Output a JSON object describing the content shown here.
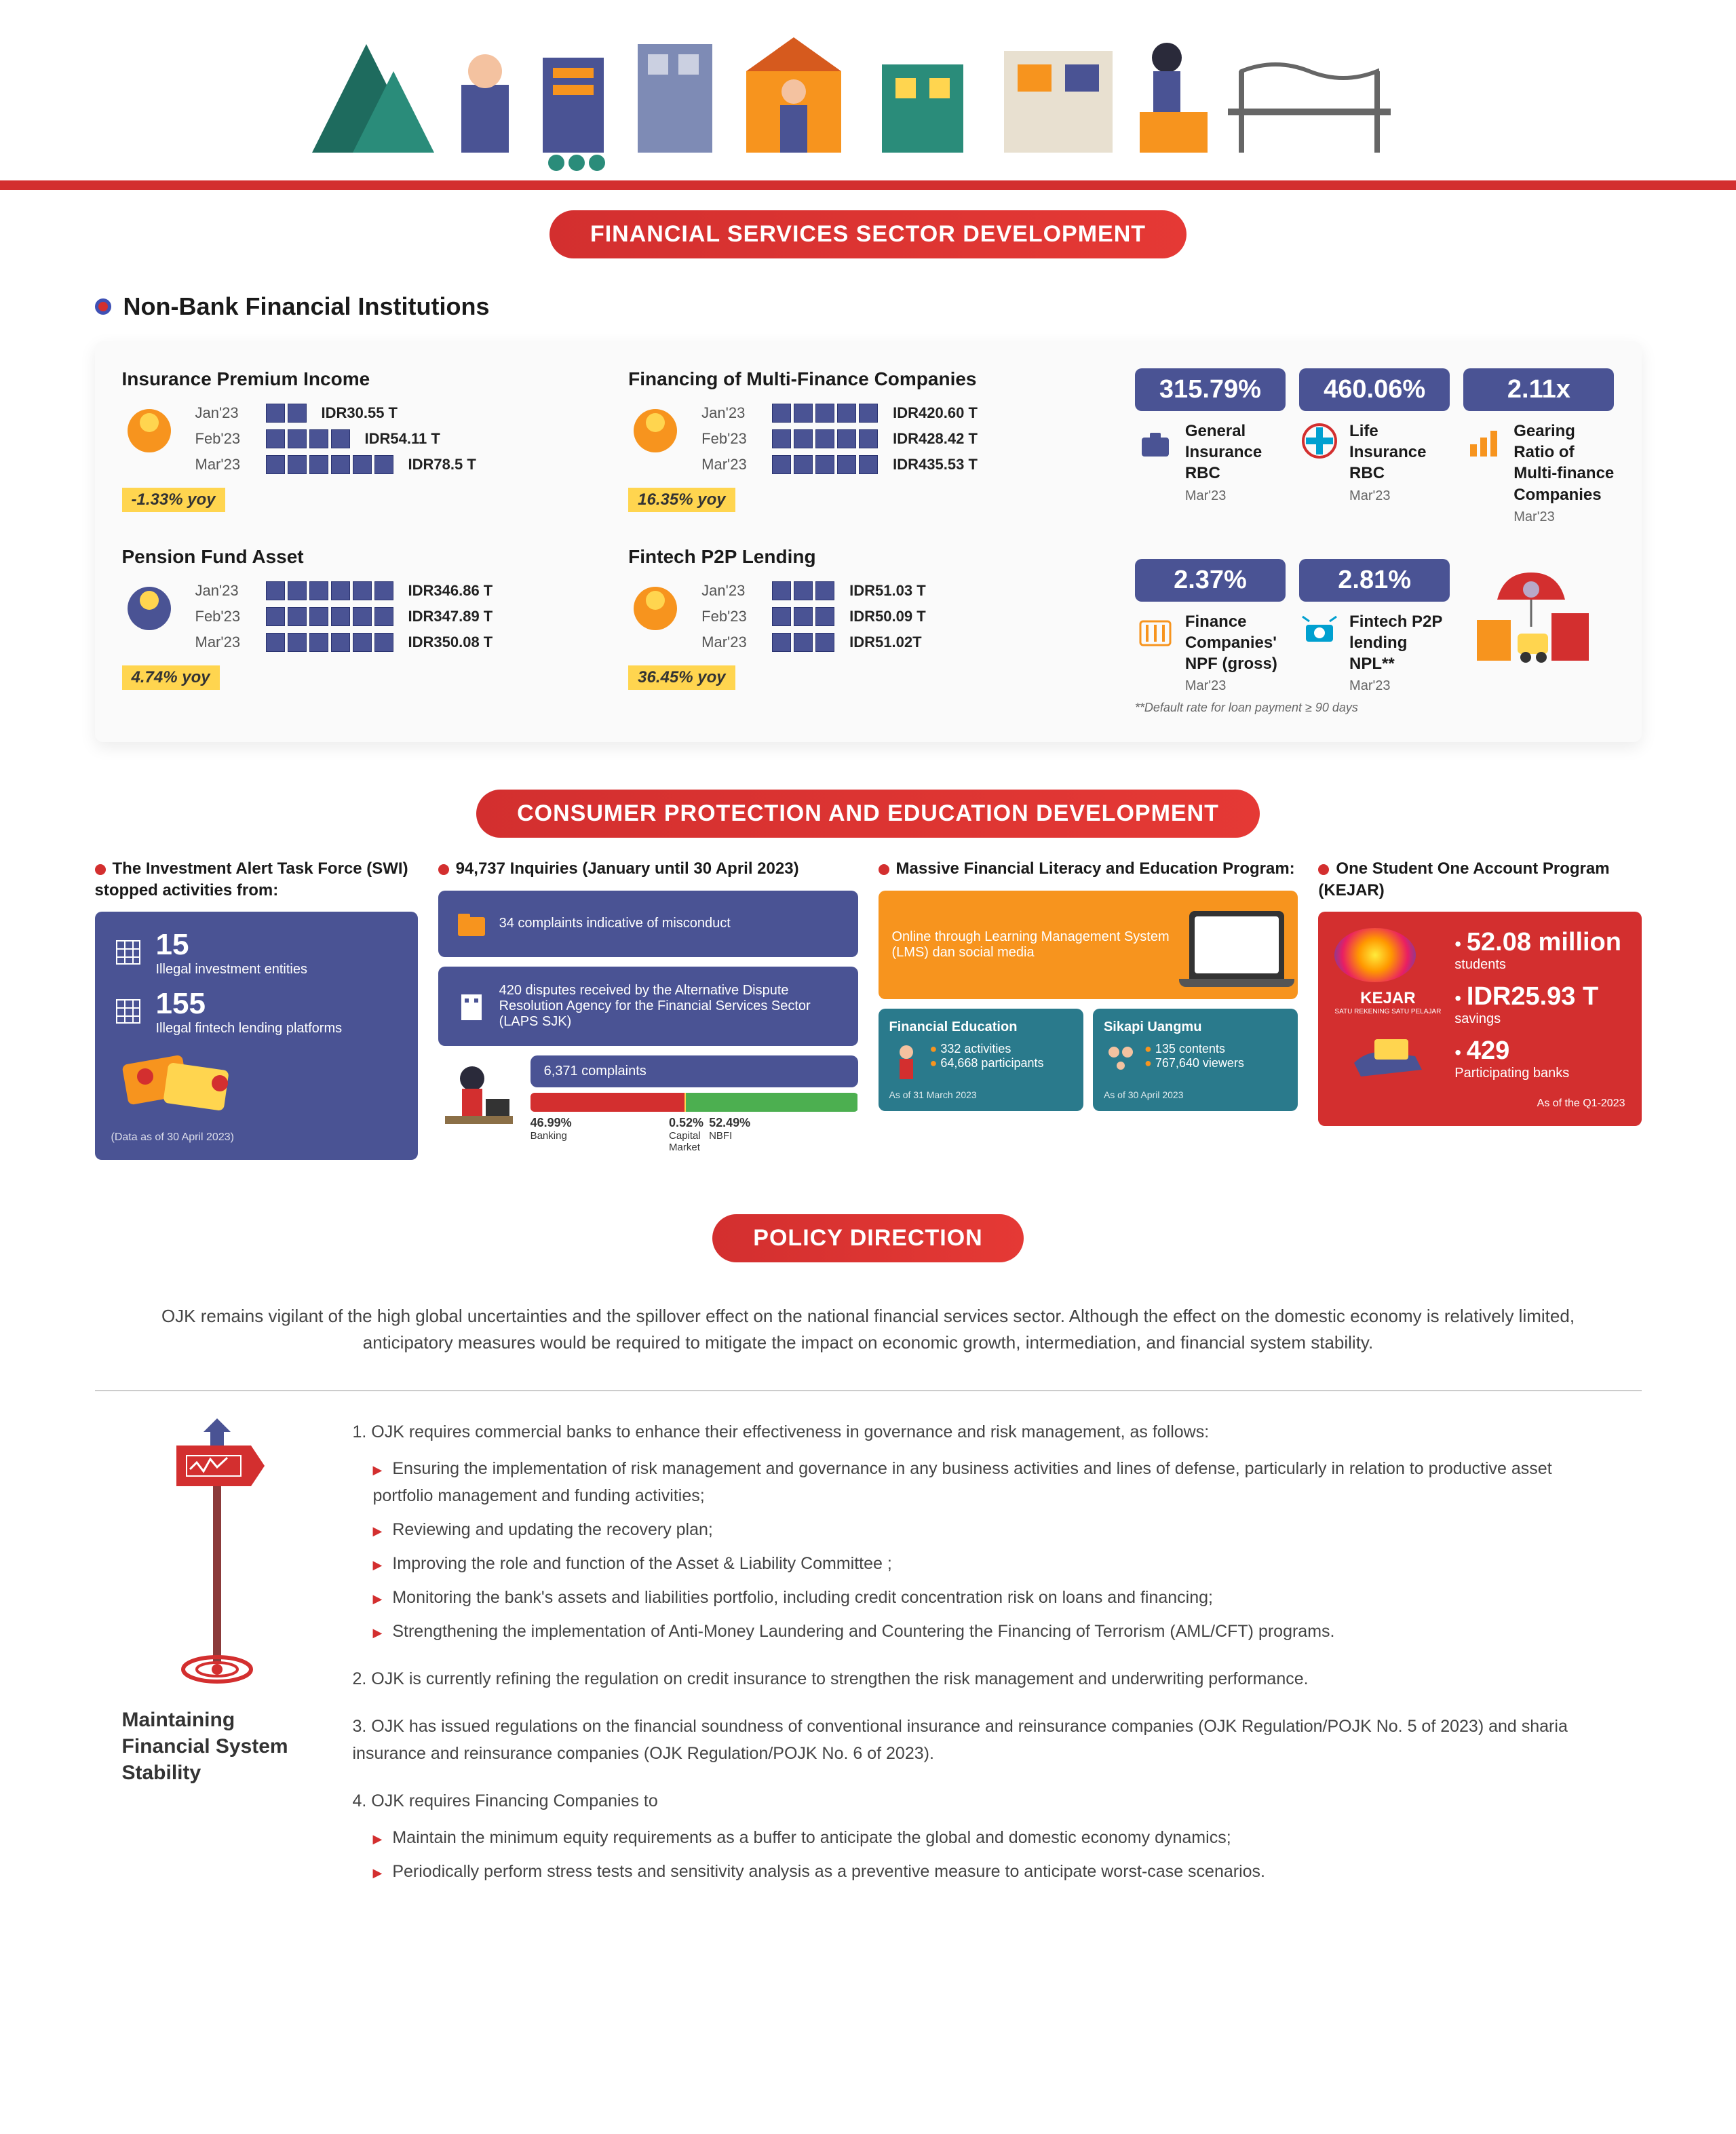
{
  "banners": {
    "financial": "FINANCIAL SERVICES SECTOR DEVELOPMENT",
    "consumer": "CONSUMER PROTECTION AND EDUCATION DEVELOPMENT",
    "policy": "POLICY DIRECTION"
  },
  "nbfi": {
    "title": "Non-Bank Financial Institutions",
    "charts": {
      "insurance": {
        "title": "Insurance Premium Income",
        "rows": [
          {
            "label": "Jan'23",
            "segs": 2,
            "value": "IDR30.55 T"
          },
          {
            "label": "Feb'23",
            "segs": 4,
            "value": "IDR54.11 T"
          },
          {
            "label": "Mar'23",
            "segs": 6,
            "value": "IDR78.5 T"
          }
        ],
        "yoy": "-1.33% yoy",
        "icon_color": "#f7941e"
      },
      "multifinance": {
        "title": "Financing of Multi-Finance Companies",
        "rows": [
          {
            "label": "Jan'23",
            "segs": 5,
            "value": "IDR420.60 T"
          },
          {
            "label": "Feb'23",
            "segs": 5,
            "value": "IDR428.42 T"
          },
          {
            "label": "Mar'23",
            "segs": 5,
            "value": "IDR435.53 T"
          }
        ],
        "yoy": "16.35% yoy",
        "icon_color": "#f7941e"
      },
      "pension": {
        "title": "Pension Fund Asset",
        "rows": [
          {
            "label": "Jan'23",
            "segs": 6,
            "value": "IDR346.86 T"
          },
          {
            "label": "Feb'23",
            "segs": 6,
            "value": "IDR347.89 T"
          },
          {
            "label": "Mar'23",
            "segs": 6,
            "value": "IDR350.08 T"
          }
        ],
        "yoy": "4.74% yoy",
        "icon_color": "#4a5394"
      },
      "fintech": {
        "title": "Fintech P2P Lending",
        "rows": [
          {
            "label": "Jan'23",
            "segs": 3,
            "value": "IDR51.03 T"
          },
          {
            "label": "Feb'23",
            "segs": 3,
            "value": "IDR50.09 T"
          },
          {
            "label": "Mar'23",
            "segs": 3,
            "value": "IDR51.02T"
          }
        ],
        "yoy": "36.45% yoy",
        "icon_color": "#f7941e"
      }
    },
    "stats": [
      {
        "value": "315.79%",
        "text": "General Insurance RBC",
        "sub": "Mar'23",
        "icon": "briefcase",
        "icon_color": "#4a5394"
      },
      {
        "value": "460.06%",
        "text": "Life Insurance RBC",
        "sub": "Mar'23",
        "icon": "plus",
        "icon_color": "#00a0d0"
      },
      {
        "value": "2.11x",
        "text": "Gearing Ratio of Multi-finance Companies",
        "sub": "Mar'23",
        "icon": "chart",
        "icon_color": "#f7941e"
      },
      {
        "value": "2.37%",
        "text": "Finance Companies' NPF (gross)",
        "sub": "Mar'23",
        "icon": "bars",
        "icon_color": "#f7941e"
      },
      {
        "value": "2.81%",
        "text": "Fintech P2P lending NPL**",
        "sub": "Mar'23",
        "icon": "money",
        "icon_color": "#00a0d0"
      }
    ],
    "footnote": "**Default rate for loan payment ≥ 90 days"
  },
  "consumer": {
    "col1": {
      "title": "The Investment Alert Task Force (SWI) stopped activities from:",
      "items": [
        {
          "n": "15",
          "t": "Illegal investment entities"
        },
        {
          "n": "155",
          "t": "Illegal fintech lending platforms"
        }
      ],
      "note": "(Data as of 30 April 2023)"
    },
    "col2": {
      "title": "94,737 Inquiries (January until 30 April 2023)",
      "box1": "34 complaints indicative of misconduct",
      "box2": "420 disputes received by the Alternative Dispute Resolution Agency for the Financial Services Sector (LAPS SJK)",
      "complaints_total": "6,371 complaints",
      "breakdown": [
        {
          "pct": "46.99%",
          "label": "Banking",
          "color": "#d32f2f",
          "w": 46.99
        },
        {
          "pct": "0.52%",
          "label": "Capital Market",
          "color": "#ffd54f",
          "w": 0.52
        },
        {
          "pct": "52.49%",
          "label": "NBFI",
          "color": "#4caf50",
          "w": 52.49
        }
      ]
    },
    "col3": {
      "title": "Massive Financial Literacy and Education Program:",
      "orange": "Online through Learning Management System (LMS) dan social media",
      "boxA": {
        "h": "Financial Education",
        "i1": "332 activities",
        "i2": "64,668 participants",
        "sub": "As of 31 March 2023"
      },
      "boxB": {
        "h": "Sikapi Uangmu",
        "i1": "135 contents",
        "i2": "767,640 viewers",
        "sub": "As of 30 April 2023"
      }
    },
    "col4": {
      "title": "One Student One Account Program (KEJAR)",
      "logo_text": "KEJAR",
      "logo_sub": "SATU REKENING SATU PELAJAR",
      "items": [
        {
          "big": "52.08 million",
          "t": "students"
        },
        {
          "big": "IDR25.93 T",
          "t": "savings"
        },
        {
          "big": "429",
          "t": "Participating banks"
        }
      ],
      "note": "As of the Q1-2023"
    }
  },
  "policy": {
    "intro": "OJK remains vigilant of the high global uncertainties and the spillover effect on the national financial services sector. Although the effect on the domestic economy is relatively limited, anticipatory measures would be required to mitigate the impact on economic growth, intermediation, and financial system stability.",
    "left_title": "Maintaining Financial System Stability",
    "items": [
      {
        "n": "1.",
        "text": "OJK requires commercial banks to enhance their effectiveness in governance and risk management, as follows:",
        "sub": [
          "Ensuring the implementation of risk management and governance in any business activities and lines of defense, particularly in relation to productive asset portfolio management and funding activities;",
          "Reviewing and updating the recovery plan;",
          "Improving the role and function of the Asset & Liability Committee ;",
          "Monitoring the bank's assets and liabilities portfolio, including credit concentration risk on loans and financing;",
          "Strengthening the implementation of Anti-Money Laundering and Countering the Financing of Terrorism (AML/CFT) programs."
        ]
      },
      {
        "n": "2.",
        "text": "OJK is currently refining the regulation on credit insurance to strengthen the risk management and underwriting performance."
      },
      {
        "n": "3.",
        "text": "OJK has issued regulations on the financial soundness of conventional insurance and reinsurance companies (OJK Regulation/POJK No. 5 of 2023) and sharia insurance and reinsurance companies (OJK Regulation/POJK No. 6 of 2023)."
      },
      {
        "n": "4.",
        "text": "OJK requires Financing Companies to",
        "sub": [
          "Maintain the minimum equity requirements as a buffer to anticipate the global and domestic economy dynamics;",
          "Periodically perform stress tests and sensitivity analysis as a preventive measure to anticipate worst-case scenarios."
        ]
      }
    ]
  },
  "colors": {
    "primary": "#4a5394",
    "accent": "#d32f2f",
    "orange": "#f7941e",
    "teal": "#2a7a8c",
    "yellow": "#ffd54f"
  }
}
